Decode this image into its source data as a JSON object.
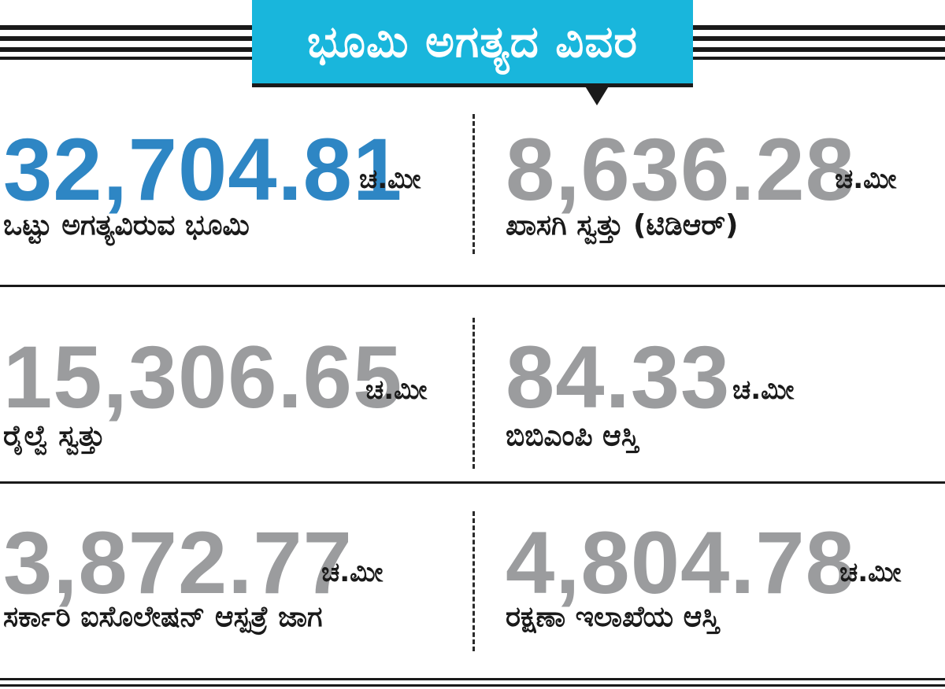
{
  "header": {
    "title": "ಭೂಮಿ ಅಗತ್ಯದ ವಿವರ",
    "accent_color": "#19b6dc"
  },
  "stats": [
    {
      "value": "32,704.81",
      "unit": "ಚ.ಮೀ",
      "label": "ಒಟ್ಟು ಅಗತ್ಯವಿರುವ ಭೂಮಿ",
      "color": "#2e86c4"
    },
    {
      "value": "8,636.28",
      "unit": "ಚ.ಮೀ",
      "label": "ಖಾಸಗಿ ಸ್ವತ್ತು (ಟಿಡಿಆರ್)",
      "color": "#9b9c9e"
    },
    {
      "value": "15,306.65",
      "unit": "ಚ.ಮೀ",
      "label": "ರೈಲ್ವೆ ಸ್ವತ್ತು",
      "color": "#9b9c9e"
    },
    {
      "value": "84.33",
      "unit": "ಚ.ಮೀ",
      "label": "ಬಿಬಿಎಂಪಿ ಆಸ್ತಿ",
      "color": "#9b9c9e"
    },
    {
      "value": "3,872.77",
      "unit": "ಚ.ಮೀ",
      "label": "ಸರ್ಕಾರಿ ಐಸೊಲೇಷನ್ ಆಸ್ಪತ್ರೆ ಜಾಗ",
      "color": "#9b9c9e"
    },
    {
      "value": "4,804.78",
      "unit": "ಚ.ಮೀ",
      "label": "ರಕ್ಷಣಾ ಇಲಾಖೆಯ ಆಸ್ತಿ",
      "color": "#9b9c9e"
    }
  ]
}
